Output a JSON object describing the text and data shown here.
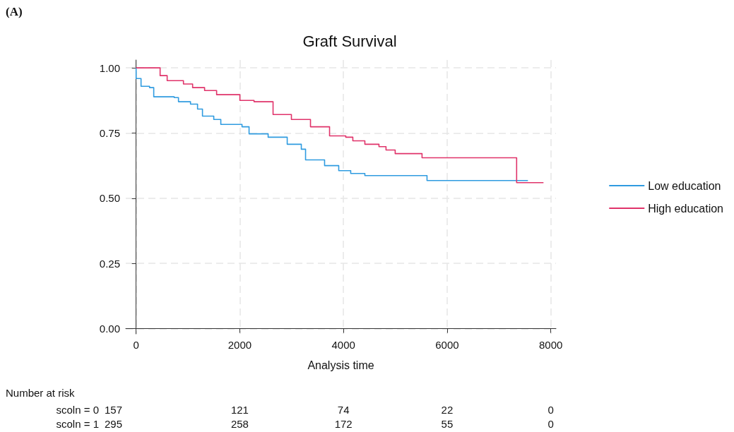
{
  "chart_data": {
    "type": "step",
    "title": "Graft Survival",
    "xlabel": "Analysis time",
    "xlim": [
      -200,
      8100
    ],
    "xticks": [
      0,
      2000,
      4000,
      6000,
      8000
    ],
    "ylim": [
      -0.02,
      1.03
    ],
    "yticks": [
      {
        "value": 0,
        "label": "0.00"
      },
      {
        "value": 0.25,
        "label": "0.25"
      },
      {
        "value": 0.5,
        "label": "0.50"
      },
      {
        "value": 0.75,
        "label": "0.75"
      },
      {
        "value": 1,
        "label": "1.00"
      }
    ],
    "grid": true,
    "legend": "right",
    "marker": "none",
    "line_style": "solid",
    "series": [
      {
        "name": "Low education",
        "color": "#2f9be0",
        "x": [
          0,
          0,
          95,
          259,
          340,
          735,
          817,
          1049,
          1185,
          1280,
          1498,
          1634,
          2043,
          2179,
          2547,
          2915,
          3187,
          3269,
          3636,
          3909,
          4140,
          4413,
          5584,
          5612,
          7559
        ],
        "values": [
          1.0,
          0.959,
          0.929,
          0.924,
          0.889,
          0.886,
          0.87,
          0.861,
          0.842,
          0.815,
          0.802,
          0.783,
          0.774,
          0.747,
          0.734,
          0.707,
          0.688,
          0.647,
          0.625,
          0.606,
          0.595,
          0.587,
          0.587,
          0.568,
          0.568
        ]
      },
      {
        "name": "High education",
        "color": "#e0336a",
        "x": [
          0,
          463,
          599,
          913,
          1090,
          1321,
          1553,
          2002,
          2275,
          2642,
          2996,
          3364,
          3732,
          4045,
          4181,
          4413,
          4685,
          4821,
          4998,
          5516,
          7341,
          7859
        ],
        "values": [
          1.0,
          0.97,
          0.951,
          0.938,
          0.924,
          0.913,
          0.897,
          0.875,
          0.87,
          0.821,
          0.802,
          0.774,
          0.739,
          0.734,
          0.72,
          0.707,
          0.698,
          0.685,
          0.671,
          0.655,
          0.56,
          0.56
        ]
      }
    ],
    "annotations": [
      "(A)",
      "Number at risk",
      "scoln = 0",
      "157",
      "121",
      "74",
      "22",
      "0",
      "scoln = 1",
      "295",
      "258",
      "172",
      "55",
      "0"
    ]
  }
}
